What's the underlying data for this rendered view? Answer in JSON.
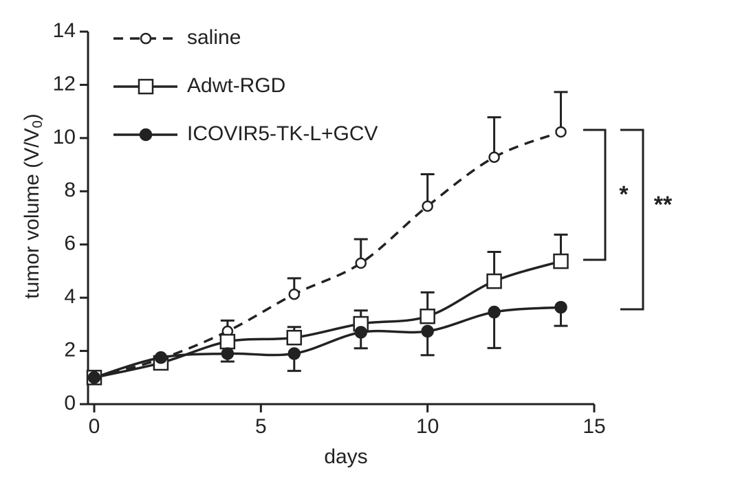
{
  "chart_data": {
    "type": "line",
    "xlabel": "days",
    "ylabel": [
      "tumor volume (V/V",
      "0",
      ")"
    ],
    "xlim": [
      0,
      15
    ],
    "xticks": [
      0,
      5,
      10,
      15
    ],
    "ylim": [
      0,
      14
    ],
    "yticks": [
      0,
      2,
      4,
      6,
      8,
      10,
      12,
      14
    ],
    "x": [
      0,
      2,
      4,
      6,
      8,
      10,
      12,
      14
    ],
    "legend": "upper left",
    "series": [
      {
        "name": "saline",
        "color": "#222222",
        "dashed": true,
        "marker": "circle",
        "filled": false,
        "error_direction": "up",
        "values": [
          1.0,
          1.7,
          2.74,
          4.13,
          5.3,
          7.44,
          9.28,
          10.23
        ],
        "errors": [
          null,
          null,
          0.4,
          0.6,
          0.9,
          1.2,
          1.5,
          1.5
        ]
      },
      {
        "name": "Adwt-RGD",
        "color": "#222222",
        "dashed": false,
        "marker": "square",
        "filled": false,
        "error_direction": "up",
        "values": [
          1.0,
          1.55,
          2.35,
          2.5,
          3.02,
          3.3,
          4.62,
          5.37
        ],
        "errors": [
          null,
          null,
          null,
          0.4,
          0.5,
          0.9,
          1.1,
          1.0
        ]
      },
      {
        "name": "ICOVIR5-TK-L+GCV",
        "color": "#222222",
        "dashed": false,
        "marker": "circle",
        "filled": true,
        "error_direction": "down",
        "values": [
          1.0,
          1.75,
          1.9,
          1.9,
          2.7,
          2.74,
          3.46,
          3.64
        ],
        "errors": [
          null,
          null,
          0.3,
          0.65,
          0.6,
          0.9,
          1.35,
          0.7
        ]
      }
    ],
    "annotations": [
      "*",
      "**"
    ]
  }
}
